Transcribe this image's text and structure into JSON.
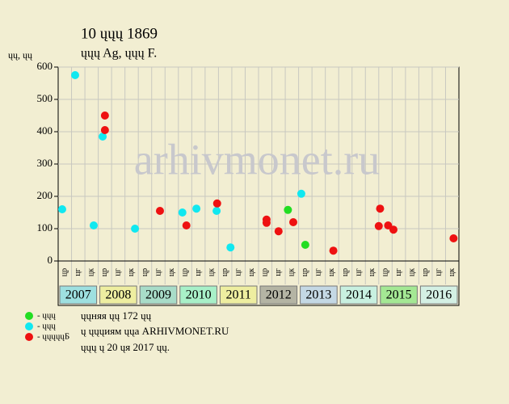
{
  "chart_data": {
    "type": "scatter",
    "title": "10 ųųų 1869",
    "subtitle": "ųųų Ag, ųųų F.",
    "y_label": "ųų, ųų",
    "watermark": "arhivmonet.ru",
    "years": [
      "2007",
      "2008",
      "2009",
      "2010",
      "2011",
      "2012",
      "2013",
      "2014",
      "2015",
      "2016"
    ],
    "year_colors": [
      "#9ee0e0",
      "#eeeea0",
      "#a8dcc8",
      "#a8f0c8",
      "#eeeea0",
      "#b4b4a4",
      "#c4d8e4",
      "#c8f0e0",
      "#a4e894",
      "#d4f0e4"
    ],
    "subcolumns": [
      "цр",
      "цг",
      "цк"
    ],
    "xlim": [
      0,
      30
    ],
    "ylim": [
      0,
      600
    ],
    "yticks": [
      0,
      100,
      200,
      300,
      400,
      500,
      600
    ],
    "grid": true,
    "series": [
      {
        "name": "- ųųų",
        "color": "#22dd22",
        "x": [
          17.2,
          18.5
        ],
        "values": [
          158,
          50
        ]
      },
      {
        "name": "- ųųų",
        "color": "#11e8f0",
        "x": [
          0.3,
          1.27,
          2.66,
          3.33,
          5.75,
          9.3,
          10.35,
          11.86,
          12.9,
          18.2
        ],
        "values": [
          160,
          575,
          110,
          385,
          100,
          150,
          162,
          155,
          42,
          208
        ]
      },
      {
        "name": "- ųųųųųБ",
        "color": "#ee1111",
        "x": [
          3.5,
          3.5,
          7.62,
          9.6,
          11.9,
          15.6,
          15.6,
          16.5,
          17.6,
          20.6,
          24.1,
          24.0,
          24.7,
          25.1,
          29.6
        ],
        "values": [
          450,
          405,
          155,
          110,
          178,
          128,
          118,
          92,
          120,
          32,
          162,
          108,
          110,
          97,
          70
        ]
      }
    ],
    "notes": [
      "ųųняя ųų 172 ųų",
      "ų ųųųиям ųųа ARHIVMONET.RU",
      "ųųų ų 20 ųя 2017 ųų."
    ]
  }
}
